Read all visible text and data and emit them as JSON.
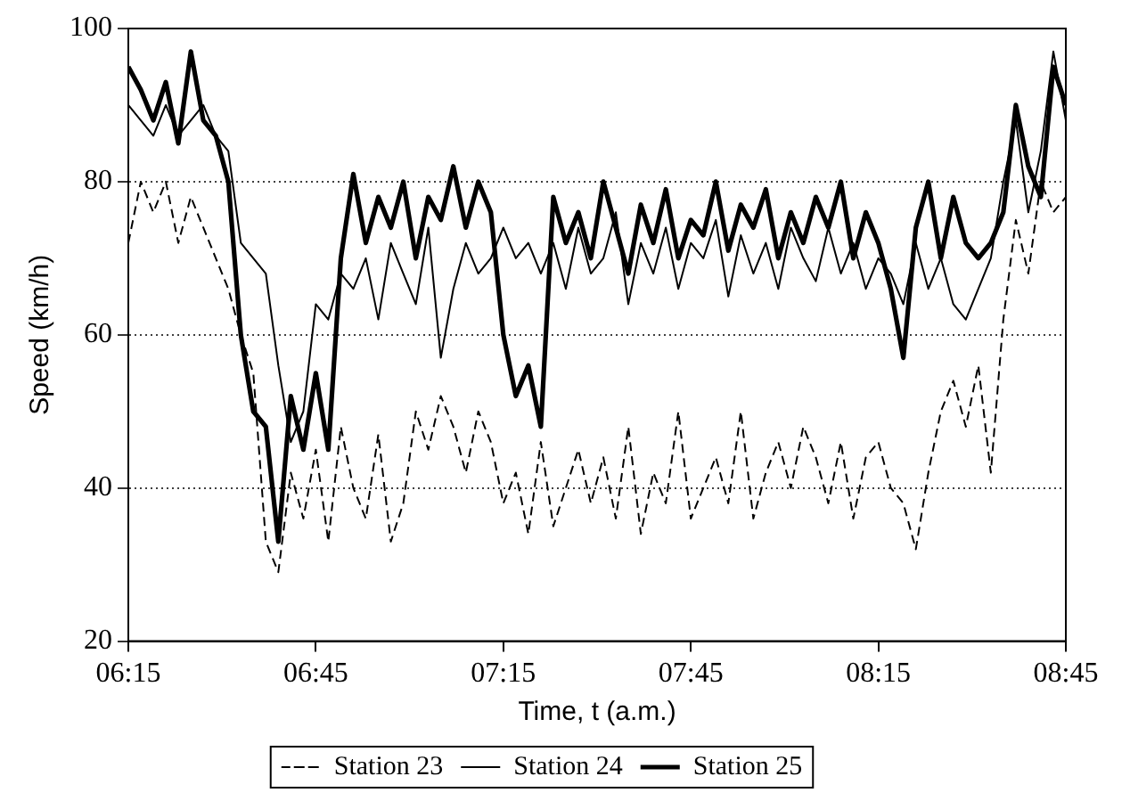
{
  "chart_data": {
    "type": "line",
    "xlabel": "Time, t (a.m.)",
    "ylabel": "Speed (km/h)",
    "x": [
      6.25,
      6.2833,
      6.3167,
      6.35,
      6.3833,
      6.4167,
      6.45,
      6.4833,
      6.5167,
      6.55,
      6.5833,
      6.6167,
      6.65,
      6.6833,
      6.7167,
      6.75,
      6.7833,
      6.8167,
      6.85,
      6.8833,
      6.9167,
      6.95,
      6.9833,
      7.0167,
      7.05,
      7.0833,
      7.1167,
      7.15,
      7.1833,
      7.2167,
      7.25,
      7.2833,
      7.3167,
      7.35,
      7.3833,
      7.4167,
      7.45,
      7.4833,
      7.5167,
      7.55,
      7.5833,
      7.6167,
      7.65,
      7.6833,
      7.7167,
      7.75,
      7.7833,
      7.8167,
      7.85,
      7.8833,
      7.9167,
      7.95,
      7.9833,
      8.0167,
      8.05,
      8.0833,
      8.1167,
      8.15,
      8.1833,
      8.2167,
      8.25,
      8.2833,
      8.3167,
      8.35,
      8.3833,
      8.4167,
      8.45,
      8.4833,
      8.5167,
      8.55,
      8.5833,
      8.6167,
      8.65,
      8.6833,
      8.7167,
      8.75
    ],
    "series": [
      {
        "name": "Station 23",
        "color": "#000000",
        "line_style": "dashed",
        "values": [
          72,
          80,
          76,
          80,
          72,
          78,
          74,
          70,
          66,
          60,
          55,
          33,
          29,
          42,
          36,
          45,
          33,
          48,
          40,
          36,
          47,
          33,
          38,
          50,
          45,
          52,
          48,
          42,
          50,
          46,
          38,
          42,
          34,
          46,
          35,
          40,
          45,
          38,
          44,
          36,
          48,
          34,
          42,
          38,
          50,
          36,
          40,
          44,
          38,
          50,
          36,
          42,
          46,
          40,
          48,
          44,
          38,
          46,
          36,
          44,
          46,
          40,
          38,
          32,
          42,
          50,
          54,
          48,
          56,
          42,
          62,
          75,
          68,
          80,
          76,
          78
        ]
      },
      {
        "name": "Station 24",
        "color": "#000000",
        "line_style": "solid",
        "values": [
          90,
          88,
          86,
          90,
          86,
          88,
          90,
          86,
          84,
          72,
          70,
          68,
          56,
          46,
          50,
          64,
          62,
          68,
          66,
          70,
          62,
          72,
          68,
          64,
          74,
          57,
          66,
          72,
          68,
          70,
          74,
          70,
          72,
          68,
          72,
          66,
          74,
          68,
          70,
          76,
          64,
          72,
          68,
          74,
          66,
          72,
          70,
          75,
          65,
          73,
          68,
          72,
          66,
          74,
          70,
          67,
          74,
          68,
          72,
          66,
          70,
          68,
          64,
          72,
          66,
          70,
          64,
          62,
          66,
          70,
          80,
          88,
          76,
          84,
          97,
          88
        ]
      },
      {
        "name": "Station 25",
        "color": "#000000",
        "line_style": "solid",
        "values": [
          95,
          92,
          88,
          93,
          85,
          97,
          88,
          86,
          80,
          60,
          50,
          48,
          33,
          52,
          45,
          55,
          45,
          70,
          81,
          72,
          78,
          74,
          80,
          70,
          78,
          75,
          82,
          74,
          80,
          76,
          60,
          52,
          56,
          48,
          78,
          72,
          76,
          70,
          80,
          74,
          68,
          77,
          72,
          79,
          70,
          75,
          73,
          80,
          71,
          77,
          74,
          79,
          70,
          76,
          72,
          78,
          74,
          80,
          70,
          76,
          72,
          66,
          57,
          74,
          80,
          70,
          78,
          72,
          70,
          72,
          76,
          90,
          82,
          78,
          95,
          90
        ]
      }
    ],
    "xlim": [
      6.25,
      8.75
    ],
    "xticks": [
      {
        "value": 6.25,
        "label": "06:15"
      },
      {
        "value": 6.75,
        "label": "06:45"
      },
      {
        "value": 7.25,
        "label": "07:15"
      },
      {
        "value": 7.75,
        "label": "07:45"
      },
      {
        "value": 8.25,
        "label": "08:15"
      },
      {
        "value": 8.75,
        "label": "08:45"
      }
    ],
    "ylim": [
      20,
      100
    ],
    "yticks": [
      20,
      40,
      60,
      80,
      100
    ],
    "grid": "y",
    "legend": "bottom",
    "marker": "none"
  }
}
